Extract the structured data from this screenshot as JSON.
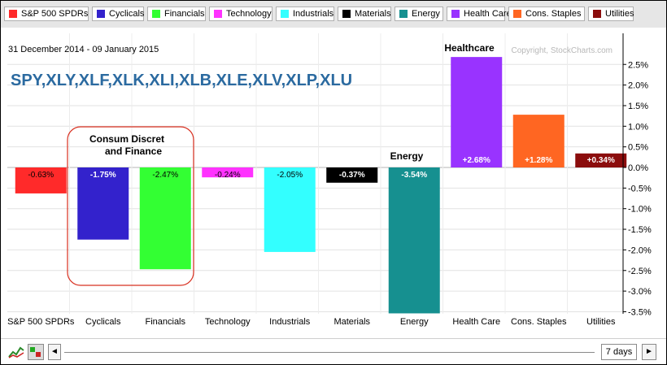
{
  "legend": [
    {
      "label": "S&P 500 SPDRs",
      "color": "#ff2a2a"
    },
    {
      "label": "Cyclicals",
      "color": "#3322cc"
    },
    {
      "label": "Financials",
      "color": "#33ff33"
    },
    {
      "label": "Technology",
      "color": "#ff33ff"
    },
    {
      "label": "Industrials",
      "color": "#33ffff"
    },
    {
      "label": "Materials",
      "color": "#000000"
    },
    {
      "label": "Energy",
      "color": "#169090"
    },
    {
      "label": "Health Care",
      "color": "#9933ff"
    },
    {
      "label": "Cons. Staples",
      "color": "#ff6622"
    },
    {
      "label": "Utilities",
      "color": "#8b0d0d"
    }
  ],
  "header": {
    "date_range": "31 December 2014 - 09 January 2015",
    "symbols": "SPY,XLY,XLF,XLK,XLI,XLB,XLE,XLV,XLP,XLU",
    "copyright": "Copyright, StockCharts.com"
  },
  "annotations": {
    "consum_line1": "Consum Discret",
    "consum_line2": "and Finance",
    "energy": "Energy",
    "healthcare": "Healthcare"
  },
  "chart_data": {
    "type": "bar",
    "categories": [
      "S&P 500 SPDRs",
      "Cyclicals",
      "Financials",
      "Technology",
      "Industrials",
      "Materials",
      "Energy",
      "Health Care",
      "Cons. Staples",
      "Utilities"
    ],
    "values": [
      -0.63,
      -1.75,
      -2.47,
      -0.24,
      -2.05,
      -0.37,
      -3.54,
      2.68,
      1.28,
      0.34
    ],
    "value_labels": [
      "-0.63%",
      "-1.75%",
      "-2.47%",
      "-0.24%",
      "-2.05%",
      "-0.37%",
      "-3.54%",
      "+2.68%",
      "+1.28%",
      "+0.34%"
    ],
    "colors": [
      "#ff2a2a",
      "#3322cc",
      "#33ff33",
      "#ff33ff",
      "#33ffff",
      "#000000",
      "#169090",
      "#9933ff",
      "#ff6622",
      "#8b0d0d"
    ],
    "y_ticks": [
      2.5,
      2.0,
      1.5,
      1.0,
      0.5,
      0.0,
      -0.5,
      -1.0,
      -1.5,
      -2.0,
      -2.5,
      -3.0,
      -3.5
    ],
    "y_tick_labels": [
      "2.5%",
      "2.0%",
      "1.5%",
      "1.0%",
      "0.5%",
      "0.0%",
      "-0.5%",
      "-1.0%",
      "-1.5%",
      "-2.0%",
      "-2.5%",
      "-3.0%",
      "-3.5%"
    ],
    "ylim": [
      -3.6,
      2.75
    ],
    "grid": true,
    "legend_position": "top"
  },
  "controls": {
    "range_label": "7 days",
    "left_arrow": "◄",
    "right_arrow": "►"
  }
}
